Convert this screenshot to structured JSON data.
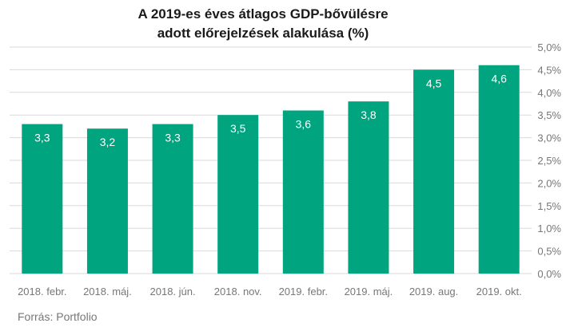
{
  "chart_data": {
    "type": "bar",
    "title_lines": [
      "A 2019-es éves átlagos GDP-bővülésre",
      "adott előrejelzések alakulása (%)"
    ],
    "categories": [
      "2018. febr.",
      "2018. máj.",
      "2018. jún.",
      "2018. nov.",
      "2019. febr.",
      "2019. máj.",
      "2019. aug.",
      "2019. okt."
    ],
    "values": [
      3.3,
      3.2,
      3.3,
      3.5,
      3.6,
      3.8,
      4.5,
      4.6
    ],
    "value_labels": [
      "3,3",
      "3,2",
      "3,3",
      "3,5",
      "3,6",
      "3,8",
      "4,5",
      "4,6"
    ],
    "y_ticks": [
      0,
      0.5,
      1,
      1.5,
      2,
      2.5,
      3,
      3.5,
      4,
      4.5,
      5
    ],
    "y_tick_labels": [
      "0,0%",
      "0,5%",
      "1,0%",
      "1,5%",
      "2,0%",
      "2,5%",
      "3,0%",
      "3,5%",
      "4,0%",
      "4,5%",
      "5,0%"
    ],
    "ylim": [
      0,
      5
    ],
    "y_axis_side": "right",
    "grid": true,
    "bar_color": "#00a47e",
    "grid_color": "#d9d9d9",
    "source": "Forrás: Portfolio"
  }
}
